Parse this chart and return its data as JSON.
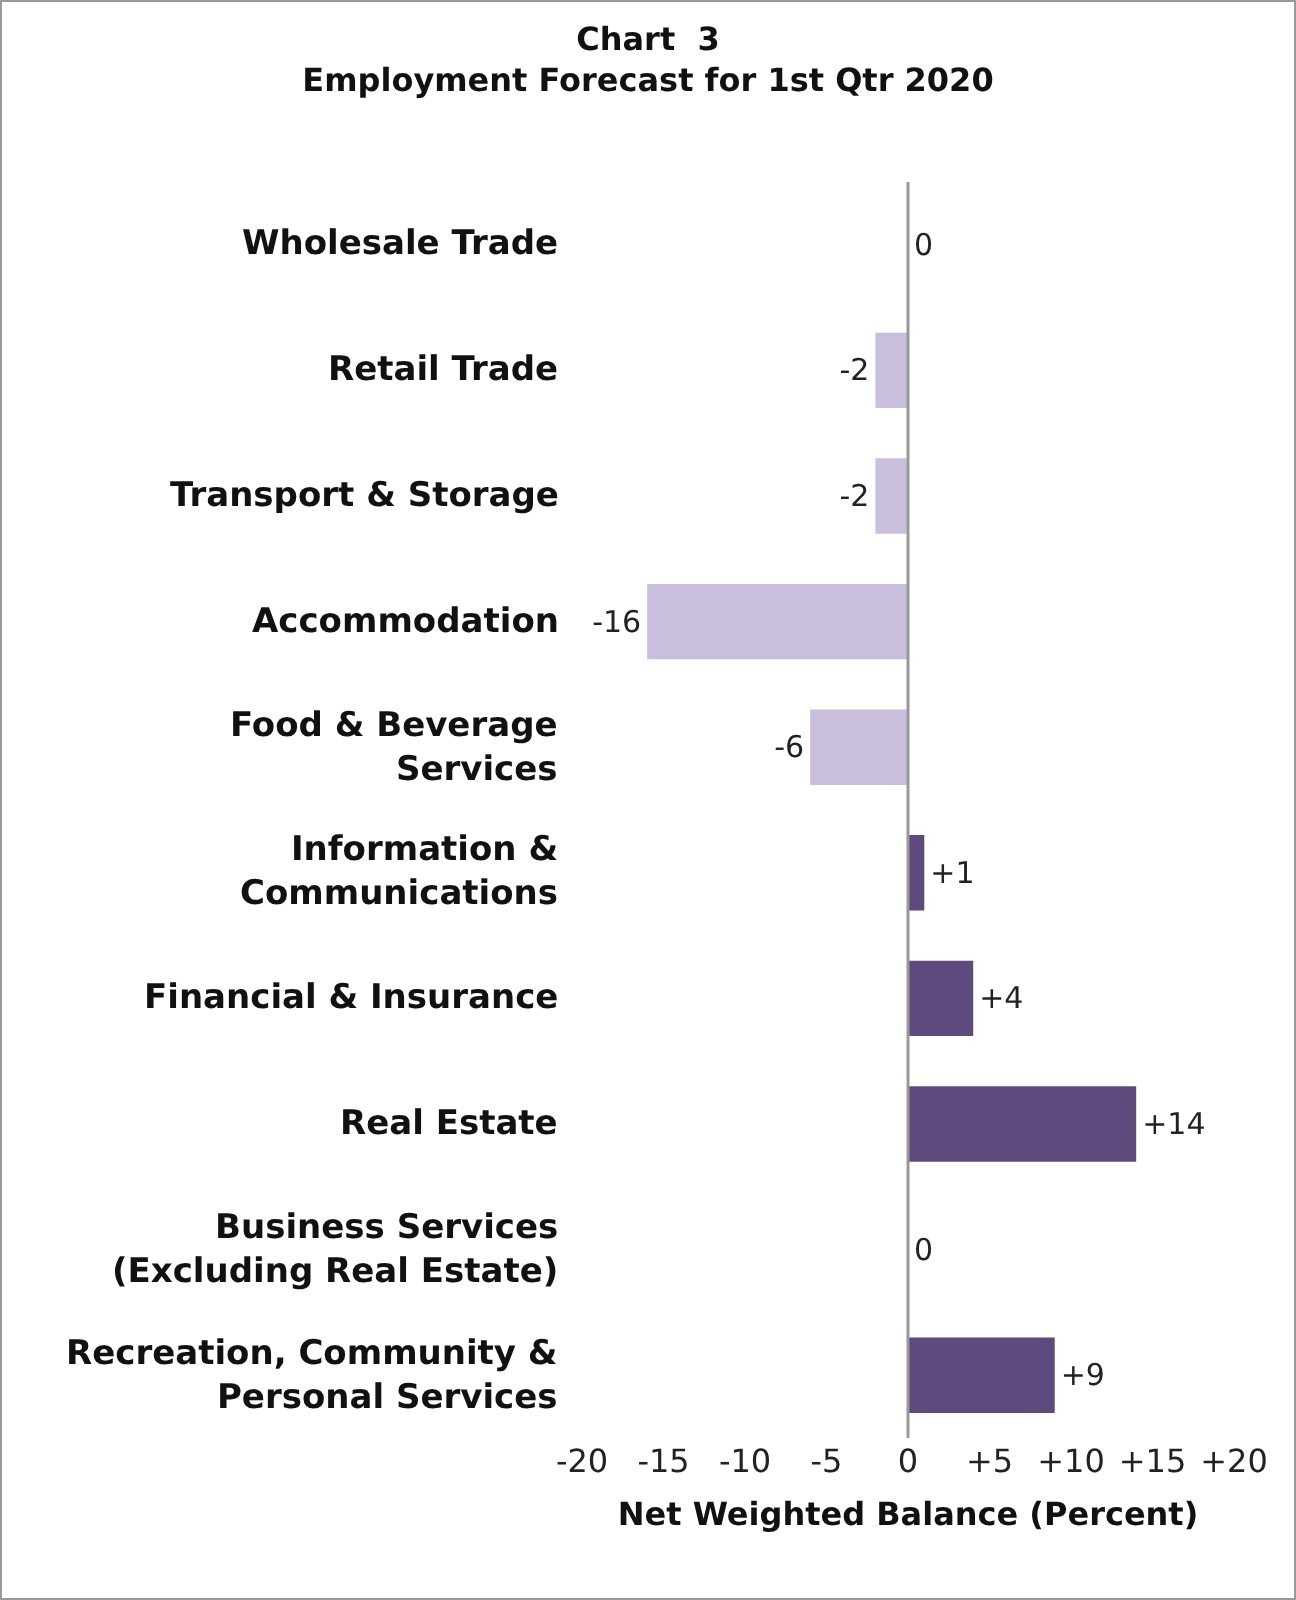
{
  "chart_data": {
    "type": "bar",
    "orientation": "horizontal",
    "title": "Chart  3",
    "subtitle": "Employment Forecast for 1st Qtr 2020",
    "xlabel": "Net Weighted Balance (Percent)",
    "categories": [
      "Wholesale Trade",
      "Retail Trade",
      "Transport & Storage",
      "Accommodation",
      "Food & Beverage Services",
      "Information & Communications",
      "Financial & Insurance",
      "Real Estate",
      "Business Services (Excluding Real Estate)",
      "Recreation, Community & Personal Services"
    ],
    "values": [
      0,
      -2,
      -2,
      -16,
      -6,
      1,
      4,
      14,
      0,
      9
    ],
    "colors": [
      "#c9bfdc",
      "#c9bfdc",
      "#c9bfdc",
      "#c9bfdc",
      "#c9bfdc",
      "#5e4a7e",
      "#5e4a7e",
      "#5e4a7e",
      "#5e4a7e",
      "#5e4a7e"
    ],
    "value_labels": [
      "0",
      "-2",
      "-2",
      "-16",
      "-6",
      "+1",
      "+4",
      "+14",
      "0",
      "+9"
    ],
    "xlim": [
      -20,
      20
    ],
    "xticks": [
      -20,
      -15,
      -10,
      -5,
      0,
      {
        "value": 5,
        "label": "+5"
      },
      {
        "value": 10,
        "label": "+10"
      },
      {
        "value": 15,
        "label": "+15"
      },
      {
        "value": 20,
        "label": "+20"
      }
    ],
    "ref_lines": [
      {
        "axis": "x",
        "value": 0,
        "color": "#999999",
        "line_style": "solid"
      }
    ],
    "grid": false,
    "legend": false
  }
}
